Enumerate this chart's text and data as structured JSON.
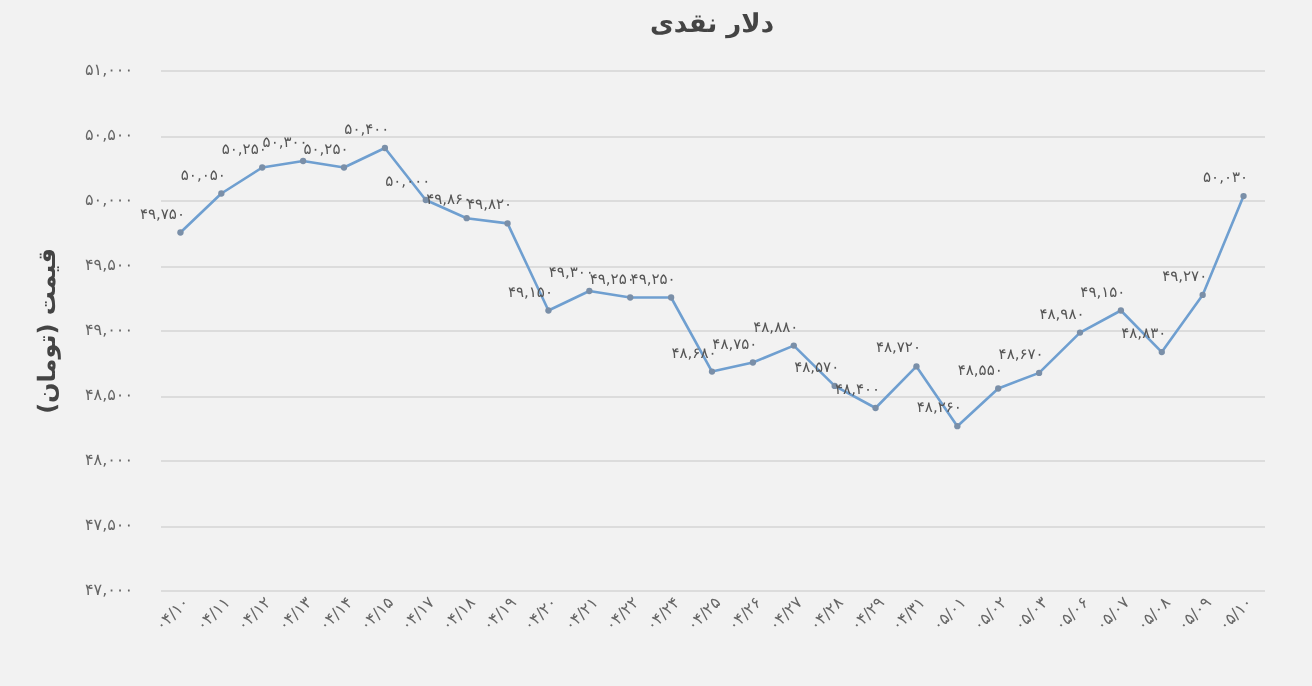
{
  "chart_data": {
    "type": "line",
    "title": "دلار نقدی",
    "ylabel": "قیمت (تومان)",
    "categories": [
      "۰۴/۱۰",
      "۰۴/۱۱",
      "۰۴/۱۲",
      "۰۴/۱۳",
      "۰۴/۱۴",
      "۰۴/۱۵",
      "۰۴/۱۷",
      "۰۴/۱۸",
      "۰۴/۱۹",
      "۰۴/۲۰",
      "۰۴/۲۱",
      "۰۴/۲۲",
      "۰۴/۲۴",
      "۰۴/۲۵",
      "۰۴/۲۶",
      "۰۴/۲۷",
      "۰۴/۲۸",
      "۰۴/۲۹",
      "۰۴/۳۱",
      "۰۵/۰۱",
      "۰۵/۰۲",
      "۰۵/۰۳",
      "۰۵/۰۶",
      "۰۵/۰۷",
      "۰۵/۰۸",
      "۰۵/۰۹",
      "۰۵/۱۰"
    ],
    "series": [
      {
        "color": "#6f9fd0",
        "values": [
          49750,
          50050,
          50250,
          50300,
          50250,
          50400,
          50000,
          49860,
          49820,
          49150,
          49300,
          49250,
          49250,
          48680,
          48750,
          48880,
          48570,
          48400,
          48720,
          48260,
          48550,
          48670,
          48980,
          49150,
          48830,
          49270,
          50030
        ],
        "value_labels": [
          "۴۹,۷۵۰",
          "۵۰,۰۵۰",
          "۵۰,۲۵۰",
          "۵۰,۳۰۰",
          "۵۰,۲۵۰",
          "۵۰,۴۰۰",
          "۵۰,۰۰۰",
          "۴۹,۸۶۰",
          "۴۹,۸۲۰",
          "۴۹,۱۵۰",
          "۴۹,۳۰۰",
          "۴۹,۲۵۰",
          "۴۹,۲۵۰",
          "۴۸,۶۸۰",
          "۴۸,۷۵۰",
          "۴۸,۸۸۰",
          "۴۸,۵۷۰",
          "۴۸,۴۰۰",
          "۴۸,۷۲۰",
          "۴۸,۲۶۰",
          "۴۸,۵۵۰",
          "۴۸,۶۷۰",
          "۴۸,۹۸۰",
          "۴۹,۱۵۰",
          "۴۸,۸۳۰",
          "۴۹,۲۷۰",
          "۵۰,۰۳۰"
        ]
      }
    ],
    "ylim": [
      47000,
      51000
    ],
    "yticks": [
      {
        "value": 47000,
        "label": "۴۷,۰۰۰"
      },
      {
        "value": 47500,
        "label": "۴۷,۵۰۰"
      },
      {
        "value": 48000,
        "label": "۴۸,۰۰۰"
      },
      {
        "value": 48500,
        "label": "۴۸,۵۰۰"
      },
      {
        "value": 49000,
        "label": "۴۹,۰۰۰"
      },
      {
        "value": 49500,
        "label": "۴۹,۵۰۰"
      },
      {
        "value": 50000,
        "label": "۵۰,۰۰۰"
      },
      {
        "value": 50500,
        "label": "۵۰,۵۰۰"
      },
      {
        "value": 51000,
        "label": "۵۱,۰۰۰"
      }
    ],
    "grid": "y",
    "marker": "circle",
    "line_style": "solid"
  }
}
